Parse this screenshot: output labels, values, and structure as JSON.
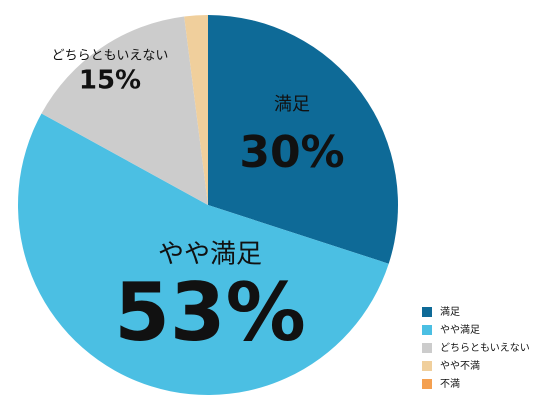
{
  "chart_data": {
    "type": "pie",
    "categories": [
      "満足",
      "やや満足",
      "どちらともいえない",
      "やや不満",
      "不満"
    ],
    "values": [
      30,
      53,
      15,
      2,
      0
    ],
    "value_labels": [
      "30%",
      "53%",
      "15%",
      null,
      null
    ],
    "colors": [
      "#0e6a97",
      "#4bbfe3",
      "#cccccc",
      "#f0cf9c",
      "#f4a050"
    ],
    "legend": "bottom-right"
  }
}
